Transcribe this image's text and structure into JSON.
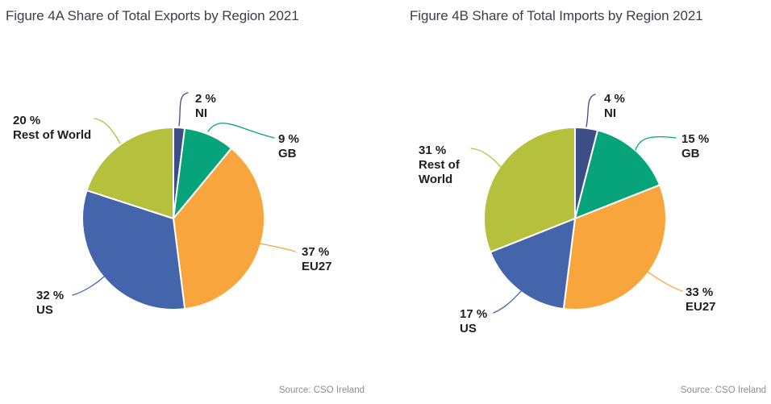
{
  "page": {
    "background": "#ffffff",
    "title_color": "#3d3d49",
    "label_color": "#202024",
    "source_color": "#8e8e8e"
  },
  "chart_data": [
    {
      "type": "pie",
      "title": "Figure 4A Share of Total Exports by Region 2021",
      "source": "Source: CSO Ireland",
      "unit": "%",
      "start_angle_deg": 0,
      "direction": "clockwise",
      "slices": [
        {
          "label": "NI",
          "value": 2,
          "callout_lines": [
            "2 %",
            "NI"
          ],
          "color": "#3d4e86"
        },
        {
          "label": "GB",
          "value": 9,
          "callout_lines": [
            "9 %",
            "GB"
          ],
          "color": "#07a47c"
        },
        {
          "label": "EU27",
          "value": 37,
          "callout_lines": [
            "37 %",
            "EU27"
          ],
          "color": "#f8a53e"
        },
        {
          "label": "US",
          "value": 32,
          "callout_lines": [
            "32 %",
            "US"
          ],
          "color": "#4464ac"
        },
        {
          "label": "Rest of World",
          "value": 20,
          "callout_lines": [
            "20 %",
            "Rest of World"
          ],
          "color": "#b5c13c"
        }
      ]
    },
    {
      "type": "pie",
      "title": "Figure 4B Share of Total Imports by Region 2021",
      "source": "Source: CSO Ireland",
      "unit": "%",
      "start_angle_deg": 0,
      "direction": "clockwise",
      "slices": [
        {
          "label": "NI",
          "value": 4,
          "callout_lines": [
            "4 %",
            "NI"
          ],
          "color": "#3d4e86"
        },
        {
          "label": "GB",
          "value": 15,
          "callout_lines": [
            "15 %",
            "GB"
          ],
          "color": "#07a47c"
        },
        {
          "label": "EU27",
          "value": 33,
          "callout_lines": [
            "33 %",
            "EU27"
          ],
          "color": "#f8a53e"
        },
        {
          "label": "US",
          "value": 17,
          "callout_lines": [
            "17 %",
            "US"
          ],
          "color": "#4464ac"
        },
        {
          "label": "Rest of World",
          "value": 31,
          "callout_lines": [
            "31 %",
            "Rest of",
            "World"
          ],
          "color": "#b5c13c"
        }
      ]
    }
  ]
}
